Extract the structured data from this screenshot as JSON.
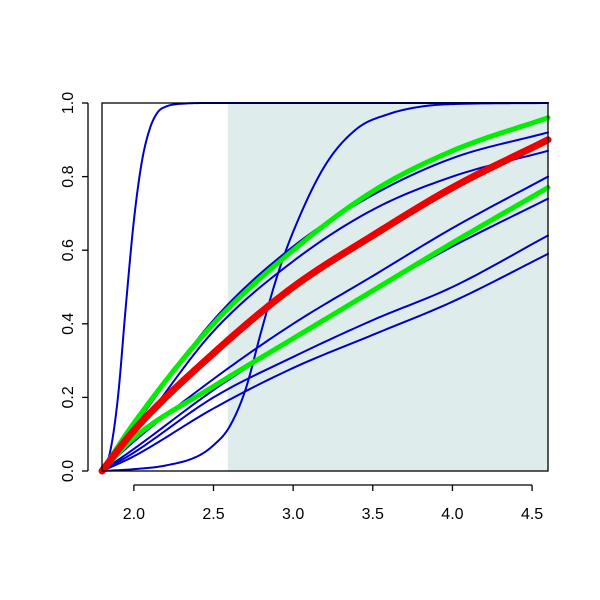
{
  "chart_data": {
    "type": "line",
    "title": "",
    "xlabel": "",
    "ylabel": "",
    "xlim": [
      1.8,
      4.6
    ],
    "ylim": [
      0,
      1
    ],
    "x_ticks": [
      2.0,
      2.5,
      3.0,
      3.5,
      4.0,
      4.5
    ],
    "x_tick_labels": [
      "2.0",
      "2.5",
      "3.0",
      "3.5",
      "4.0",
      "4.5"
    ],
    "y_ticks": [
      0.0,
      0.2,
      0.4,
      0.6,
      0.8,
      1.0
    ],
    "y_tick_labels": [
      "0.0",
      "0.2",
      "0.4",
      "0.6",
      "0.8",
      "1.0"
    ],
    "grid": false,
    "shaded_region": {
      "x_from": 2.59,
      "x_to": 4.6,
      "y_from": 0,
      "y_to": 1,
      "color": "#deeceb"
    },
    "series": [
      {
        "color": "#0000cc",
        "width": 2,
        "points": [
          [
            1.8,
            0
          ],
          [
            1.85,
            0.05
          ],
          [
            1.9,
            0.2
          ],
          [
            1.95,
            0.45
          ],
          [
            2.0,
            0.68
          ],
          [
            2.05,
            0.84
          ],
          [
            2.1,
            0.93
          ],
          [
            2.15,
            0.975
          ],
          [
            2.2,
            0.99
          ],
          [
            2.3,
            0.998
          ],
          [
            2.5,
            1
          ],
          [
            3.0,
            1
          ],
          [
            4.6,
            1
          ]
        ]
      },
      {
        "color": "#0000cc",
        "width": 2,
        "points": [
          [
            1.8,
            0
          ],
          [
            2.0,
            0.005
          ],
          [
            2.2,
            0.015
          ],
          [
            2.4,
            0.04
          ],
          [
            2.5,
            0.07
          ],
          [
            2.6,
            0.12
          ],
          [
            2.7,
            0.22
          ],
          [
            2.8,
            0.38
          ],
          [
            2.9,
            0.53
          ],
          [
            3.0,
            0.65
          ],
          [
            3.2,
            0.83
          ],
          [
            3.4,
            0.93
          ],
          [
            3.6,
            0.97
          ],
          [
            3.8,
            0.99
          ],
          [
            4.0,
            0.997
          ],
          [
            4.6,
            1
          ]
        ]
      },
      {
        "color": "#0000cc",
        "width": 2,
        "points": [
          [
            1.8,
            0
          ],
          [
            2.0,
            0.12
          ],
          [
            2.5,
            0.41
          ],
          [
            3.0,
            0.61
          ],
          [
            3.5,
            0.75
          ],
          [
            4.0,
            0.85
          ],
          [
            4.6,
            0.92
          ]
        ]
      },
      {
        "color": "#0000cc",
        "width": 2,
        "points": [
          [
            1.8,
            0
          ],
          [
            2.0,
            0.1
          ],
          [
            2.5,
            0.38
          ],
          [
            3.0,
            0.57
          ],
          [
            3.5,
            0.71
          ],
          [
            4.0,
            0.8
          ],
          [
            4.6,
            0.87
          ]
        ]
      },
      {
        "color": "#0000cc",
        "width": 2,
        "points": [
          [
            1.8,
            0
          ],
          [
            2.0,
            0.08
          ],
          [
            2.5,
            0.25
          ],
          [
            3.0,
            0.4
          ],
          [
            3.5,
            0.53
          ],
          [
            4.0,
            0.66
          ],
          [
            4.6,
            0.8
          ]
        ]
      },
      {
        "color": "#0000cc",
        "width": 2,
        "points": [
          [
            1.8,
            0
          ],
          [
            2.0,
            0.06
          ],
          [
            2.5,
            0.22
          ],
          [
            3.0,
            0.36
          ],
          [
            3.5,
            0.49
          ],
          [
            4.0,
            0.61
          ],
          [
            4.6,
            0.74
          ]
        ]
      },
      {
        "color": "#0000cc",
        "width": 2,
        "points": [
          [
            1.8,
            0
          ],
          [
            2.0,
            0.05
          ],
          [
            2.5,
            0.2
          ],
          [
            3.0,
            0.31
          ],
          [
            3.5,
            0.41
          ],
          [
            4.0,
            0.5
          ],
          [
            4.6,
            0.64
          ]
        ]
      },
      {
        "color": "#0000cc",
        "width": 2,
        "points": [
          [
            1.8,
            0
          ],
          [
            2.0,
            0.04
          ],
          [
            2.5,
            0.17
          ],
          [
            3.0,
            0.28
          ],
          [
            3.5,
            0.37
          ],
          [
            4.0,
            0.46
          ],
          [
            4.6,
            0.59
          ]
        ]
      },
      {
        "color": "#00ee00",
        "width": 5,
        "points": [
          [
            1.8,
            0
          ],
          [
            2.0,
            0.13
          ],
          [
            2.5,
            0.4
          ],
          [
            3.0,
            0.6
          ],
          [
            3.5,
            0.76
          ],
          [
            4.0,
            0.87
          ],
          [
            4.6,
            0.96
          ]
        ]
      },
      {
        "color": "#00ee00",
        "width": 5,
        "points": [
          [
            1.8,
            0
          ],
          [
            2.0,
            0.09
          ],
          [
            2.5,
            0.23
          ],
          [
            3.0,
            0.36
          ],
          [
            3.5,
            0.49
          ],
          [
            4.0,
            0.62
          ],
          [
            4.6,
            0.77
          ]
        ]
      },
      {
        "color": "#ee0000",
        "width": 7,
        "points": [
          [
            1.8,
            0
          ],
          [
            2.0,
            0.11
          ],
          [
            2.5,
            0.32
          ],
          [
            3.0,
            0.5
          ],
          [
            3.5,
            0.64
          ],
          [
            4.0,
            0.77
          ],
          [
            4.6,
            0.9
          ]
        ]
      }
    ]
  }
}
